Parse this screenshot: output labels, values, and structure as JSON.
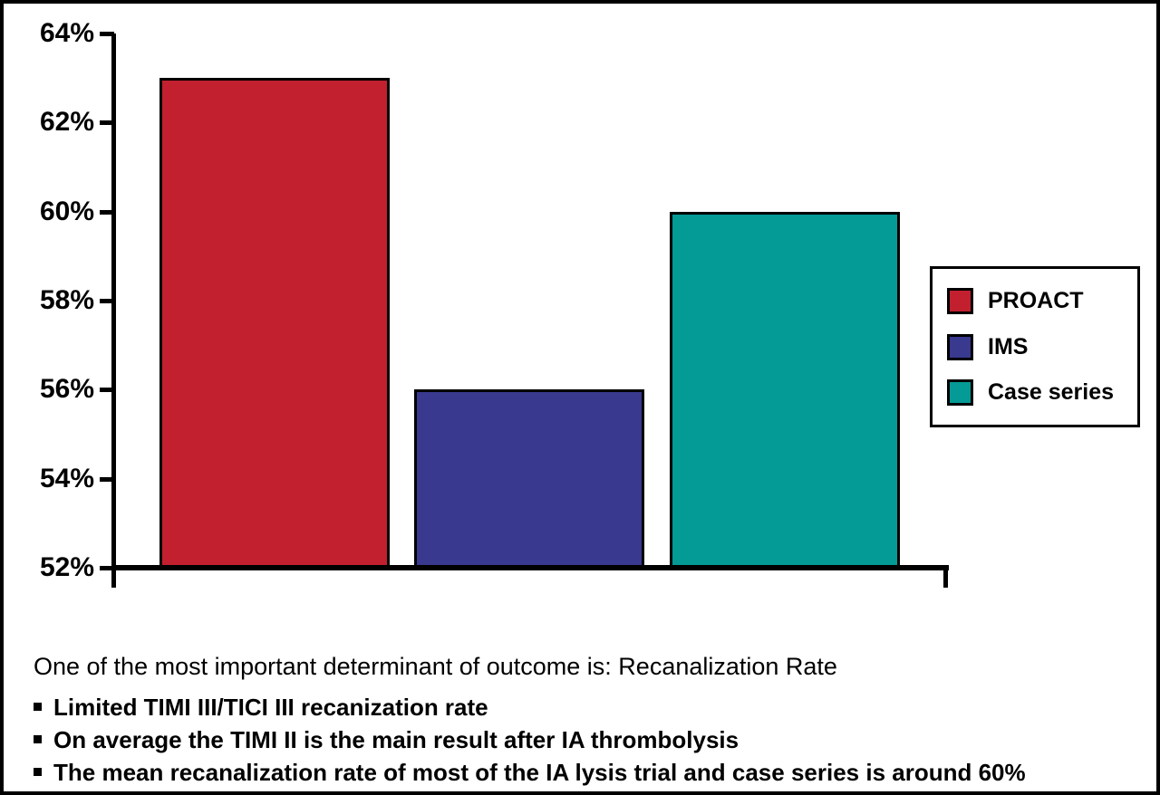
{
  "chart_data": {
    "type": "bar",
    "title": "",
    "xlabel": "",
    "ylabel": "",
    "unit": "%",
    "categories": [
      "PROACT",
      "IMS",
      "Case series"
    ],
    "values": [
      63,
      56,
      60
    ],
    "bar_colors": [
      "#c2202f",
      "#39398f",
      "#049a96"
    ],
    "ylim": [
      52,
      64
    ],
    "ytick_step": 2,
    "ytick_labels": [
      "64%",
      "62%",
      "60%",
      "58%",
      "56%",
      "54%",
      "52%"
    ],
    "grid": "off",
    "legend_position": "right",
    "legend": [
      {
        "label": "PROACT",
        "color": "#c2202f"
      },
      {
        "label": "IMS",
        "color": "#39398f"
      },
      {
        "label": "Case series",
        "color": "#049a96"
      }
    ]
  },
  "notes": {
    "heading": "One of the most important determinant of outcome is: Recanalization Rate",
    "bullets": [
      "Limited TIMI III/TICI III recanization rate",
      "On average the TIMI II is the main result after IA thrombolysis",
      "The mean recanalization rate of most of the IA lysis trial and case series is around 60%"
    ]
  },
  "colors": {
    "background": "#ffffff",
    "axis": "#000000",
    "border": "#000000",
    "text": "#000000"
  }
}
